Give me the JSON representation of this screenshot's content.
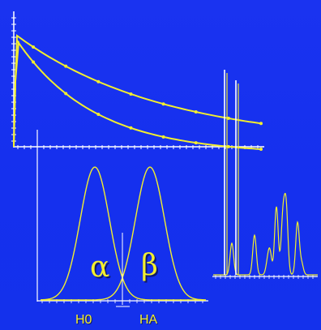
{
  "colors": {
    "background": "#1a33f0",
    "curve": "#f2ee2e",
    "axis": "#ffffff",
    "shadow": "#101a6a"
  },
  "labels": {
    "alpha": "α",
    "beta": "β",
    "h0": "H0",
    "ha": "HA"
  },
  "panels": {
    "decay_plot": {
      "series_count": 2,
      "description_type": "exponential-decay"
    },
    "distribution_plot": {
      "curves": 2,
      "shape": "gaussian"
    },
    "chromatogram": {
      "peaks": 7
    }
  }
}
